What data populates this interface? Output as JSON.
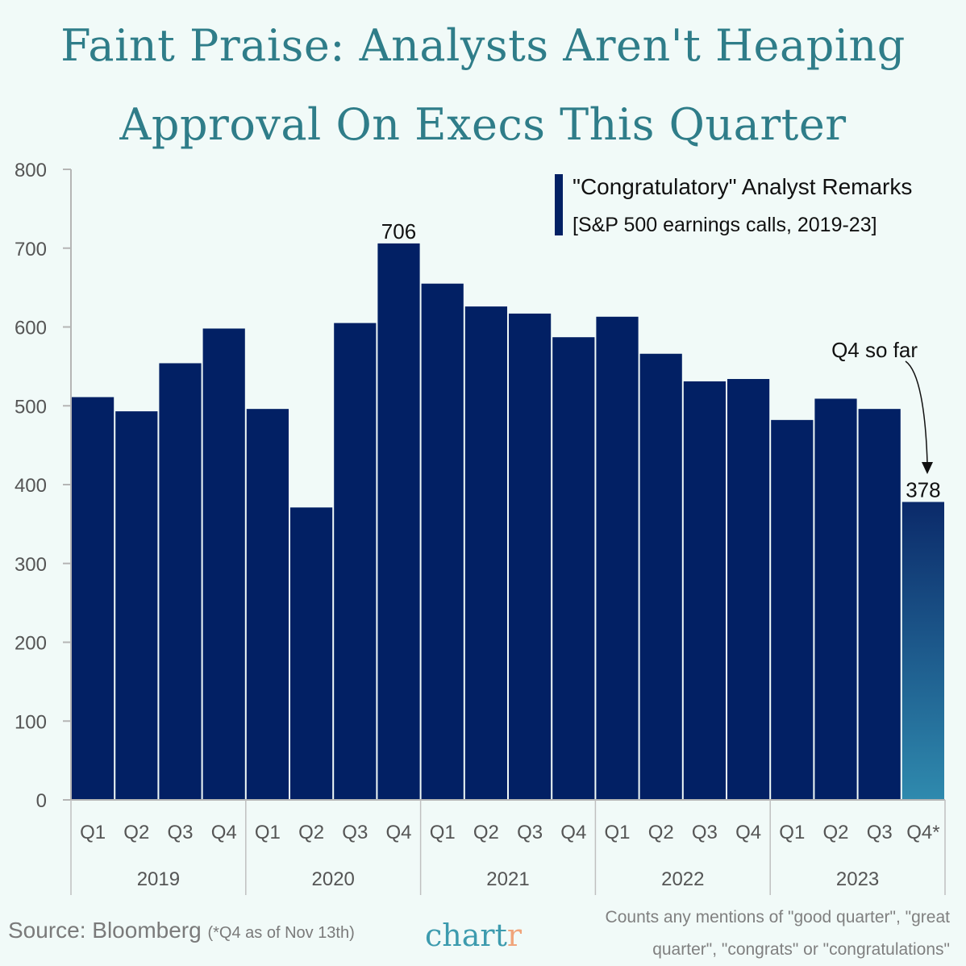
{
  "title": "Faint Praise: Analysts Aren't Heaping Approval On Execs This Quarter",
  "chart_data": {
    "type": "bar",
    "title": "Faint Praise: Analysts Aren't Heaping Approval On Execs This Quarter",
    "legend": {
      "label": "\"Congratulatory\" Analyst Remarks",
      "sublabel": "[S&P 500 earnings calls, 2019-23]",
      "position": "top-right"
    },
    "categories": [
      "Q1",
      "Q2",
      "Q3",
      "Q4",
      "Q1",
      "Q2",
      "Q3",
      "Q4",
      "Q1",
      "Q2",
      "Q3",
      "Q4",
      "Q1",
      "Q2",
      "Q3",
      "Q4",
      "Q1",
      "Q2",
      "Q3",
      "Q4*"
    ],
    "years": [
      "2019",
      "2020",
      "2021",
      "2022",
      "2023"
    ],
    "values": [
      511,
      493,
      554,
      598,
      496,
      371,
      605,
      706,
      655,
      626,
      617,
      587,
      613,
      566,
      531,
      534,
      482,
      509,
      496,
      378
    ],
    "data_labels": {
      "7": "706",
      "19": "378"
    },
    "annotation": "Q4 so far",
    "yticks": [
      "0",
      "100",
      "200",
      "300",
      "400",
      "500",
      "600",
      "700",
      "800"
    ],
    "ylim": [
      0,
      800
    ],
    "grid": false,
    "colors": {
      "bar": "#022064",
      "highlight_top": "#0b2a6a",
      "highlight_bottom": "#2f8aae",
      "title": "#2f7d89"
    }
  },
  "footer": {
    "source": "Source: Bloomberg",
    "source_note": "(*Q4 as of Nov 13th)",
    "logo": "chartr",
    "note_line1": "Counts any mentions of \"good quarter\", \"great",
    "note_line2": "quarter\", \"congrats\" or \"congratulations\""
  }
}
